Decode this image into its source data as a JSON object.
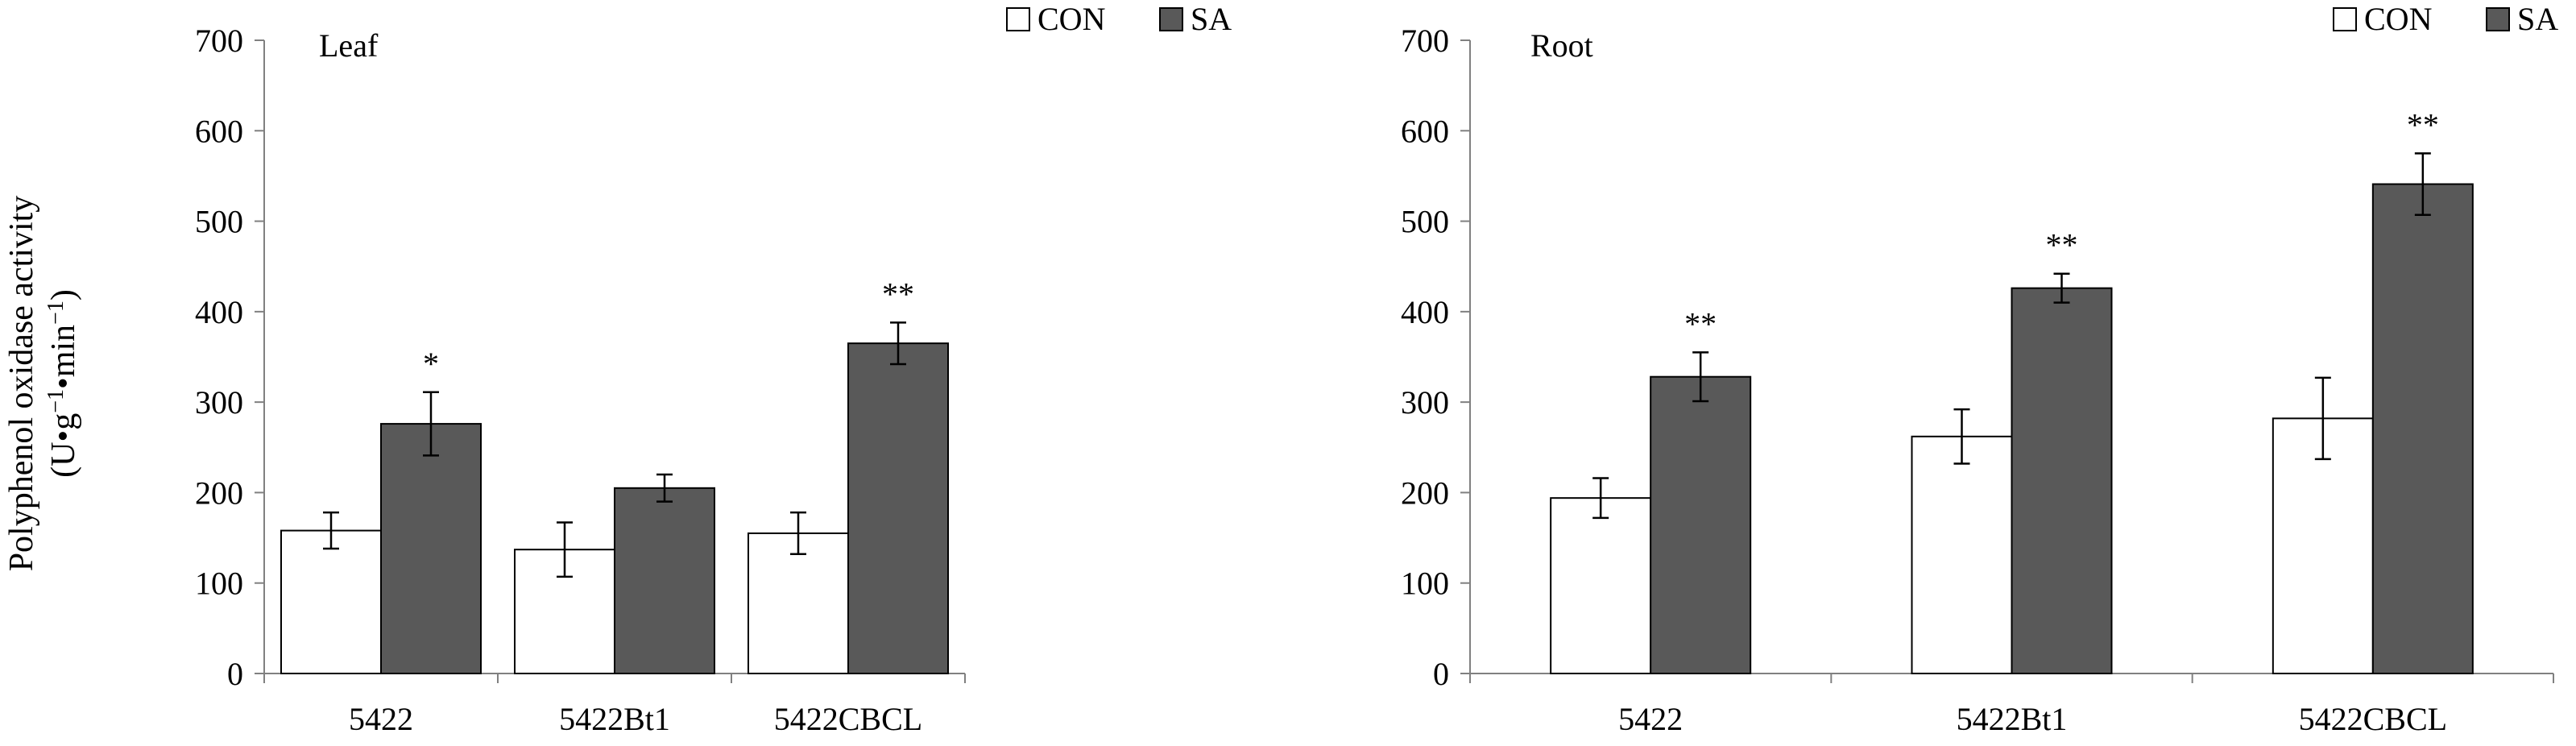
{
  "y_axis_label": {
    "line1": "Polyphenol oxidase activity",
    "line2_prefix": "(U",
    "line2_dot1": "•",
    "line2_g": "g",
    "line2_sup1": "−1",
    "line2_dot2": "•",
    "line2_min": "min",
    "line2_sup2": "−1",
    "line2_suffix": ")"
  },
  "colors": {
    "con_fill": "#ffffff",
    "sa_fill": "#595959",
    "axis": "#808080",
    "bar_stroke": "#000000"
  },
  "chart_data": [
    {
      "type": "bar",
      "title": "Leaf",
      "categories": [
        "5422",
        "5422Bt1",
        "5422CBCL"
      ],
      "ylim": [
        0,
        700
      ],
      "yticks": [
        "0",
        "100",
        "200",
        "300",
        "400",
        "500",
        "600",
        "700"
      ],
      "legend": {
        "placement": "top-right",
        "entries": [
          "CON",
          "SA"
        ]
      },
      "series": [
        {
          "name": "CON",
          "values": [
            158,
            137,
            155
          ],
          "errors": [
            20,
            30,
            23
          ]
        },
        {
          "name": "SA",
          "values": [
            276,
            205,
            365
          ],
          "errors": [
            35,
            15,
            23
          ]
        }
      ],
      "annotations": [
        "*",
        "",
        "**"
      ]
    },
    {
      "type": "bar",
      "title": "Root",
      "categories": [
        "5422",
        "5422Bt1",
        "5422CBCL"
      ],
      "ylim": [
        0,
        700
      ],
      "yticks": [
        "0",
        "100",
        "200",
        "300",
        "400",
        "500",
        "600",
        "700"
      ],
      "legend": {
        "placement": "top-right",
        "entries": [
          "CON",
          "SA"
        ]
      },
      "series": [
        {
          "name": "CON",
          "values": [
            194,
            262,
            282
          ],
          "errors": [
            22,
            30,
            45
          ]
        },
        {
          "name": "SA",
          "values": [
            328,
            426,
            541
          ],
          "errors": [
            27,
            16,
            34
          ]
        }
      ],
      "annotations": [
        "**",
        "**",
        "**"
      ]
    }
  ]
}
